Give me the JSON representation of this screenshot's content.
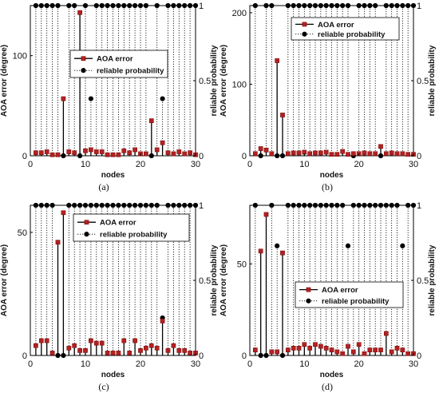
{
  "chart_data": [
    {
      "type": "line",
      "caption": "(a)",
      "xlabel": "nodes",
      "ylabel_left": "AOA error (degree)",
      "ylabel_right": "reliable probability",
      "xlim": [
        0,
        30
      ],
      "xticks": [
        0,
        10,
        20,
        30
      ],
      "ylim_left": [
        0,
        150
      ],
      "yticks_left": [
        0,
        100
      ],
      "ylim_right": [
        0,
        1
      ],
      "yticks_right": [
        0,
        0.5,
        1
      ],
      "legend_position": "upper-middle",
      "series": [
        {
          "name": "AOA error",
          "color": "#b22222",
          "x": [
            1,
            2,
            3,
            4,
            5,
            6,
            7,
            8,
            9,
            10,
            11,
            12,
            13,
            14,
            15,
            16,
            17,
            18,
            19,
            20,
            21,
            22,
            23,
            24,
            25,
            26,
            27,
            28,
            29,
            30
          ],
          "values": [
            3,
            3,
            4,
            1,
            1,
            57,
            4,
            3,
            143,
            5,
            6,
            4,
            4,
            1,
            1,
            1,
            5,
            3,
            6,
            2,
            2,
            35,
            6,
            13,
            3,
            2,
            4,
            2,
            3,
            1
          ]
        },
        {
          "name": "reliable probability",
          "color": "#000000",
          "x": [
            1,
            2,
            3,
            4,
            5,
            6,
            7,
            8,
            9,
            10,
            11,
            12,
            13,
            14,
            15,
            16,
            17,
            18,
            19,
            20,
            21,
            22,
            23,
            24,
            25,
            26,
            27,
            28,
            29,
            30
          ],
          "values": [
            1,
            1,
            1,
            1,
            1,
            0,
            1,
            1,
            0,
            1,
            0.38,
            1,
            1,
            1,
            1,
            1,
            1,
            1,
            1,
            1,
            1,
            0,
            1,
            0.38,
            1,
            1,
            1,
            1,
            1,
            1
          ]
        }
      ]
    },
    {
      "type": "line",
      "caption": "(b)",
      "xlabel": "nodes",
      "ylabel_left": "AOA error (degree)",
      "ylabel_right": "reliable probability",
      "xlim": [
        0,
        30
      ],
      "xticks": [
        0,
        10,
        20,
        30
      ],
      "ylim_left": [
        0,
        210
      ],
      "yticks_left": [
        0,
        100,
        200
      ],
      "ylim_right": [
        0,
        1
      ],
      "yticks_right": [
        0,
        0.5,
        1
      ],
      "legend_position": "upper-right",
      "series": [
        {
          "name": "AOA error",
          "color": "#b22222",
          "x": [
            1,
            2,
            3,
            4,
            5,
            6,
            7,
            8,
            9,
            10,
            11,
            12,
            13,
            14,
            15,
            16,
            17,
            18,
            19,
            20,
            21,
            22,
            23,
            24,
            25,
            26,
            27,
            28,
            29,
            30
          ],
          "values": [
            3,
            10,
            8,
            3,
            133,
            57,
            3,
            4,
            4,
            5,
            3,
            4,
            4,
            5,
            2,
            2,
            6,
            2,
            3,
            3,
            4,
            3,
            3,
            13,
            3,
            4,
            3,
            3,
            2,
            2
          ]
        },
        {
          "name": "reliable probability",
          "color": "#000000",
          "x": [
            1,
            2,
            3,
            4,
            5,
            6,
            7,
            8,
            9,
            10,
            11,
            12,
            13,
            14,
            15,
            16,
            17,
            18,
            19,
            20,
            21,
            22,
            23,
            24,
            25,
            26,
            27,
            28,
            29,
            30
          ],
          "values": [
            1,
            0,
            1,
            1,
            0,
            0,
            1,
            1,
            1,
            1,
            1,
            1,
            1,
            1,
            1,
            1,
            1,
            1,
            0,
            1,
            1,
            1,
            1,
            0,
            1,
            1,
            1,
            1,
            1,
            1
          ]
        }
      ]
    },
    {
      "type": "line",
      "caption": "(c)",
      "xlabel": "nodes",
      "ylabel_left": "AOA error (degree)",
      "ylabel_right": "reliable probability",
      "xlim": [
        0,
        30
      ],
      "xticks": [
        0,
        10,
        20,
        30
      ],
      "ylim_left": [
        0,
        61
      ],
      "yticks_left": [
        0,
        50
      ],
      "ylim_right": [
        0,
        1
      ],
      "yticks_right": [
        0,
        0.5,
        1
      ],
      "legend_position": "upper-middle",
      "series": [
        {
          "name": "AOA error",
          "color": "#b22222",
          "x": [
            1,
            2,
            3,
            4,
            5,
            6,
            7,
            8,
            9,
            10,
            11,
            12,
            13,
            14,
            15,
            16,
            17,
            18,
            19,
            20,
            21,
            22,
            23,
            24,
            25,
            26,
            27,
            28,
            29,
            30
          ],
          "values": [
            4,
            6,
            6,
            1,
            46,
            58,
            3,
            4,
            2,
            2,
            6,
            5,
            5,
            1,
            1,
            1,
            6,
            1,
            6,
            2,
            3,
            4,
            3,
            14,
            2,
            4,
            2,
            2,
            1,
            1
          ]
        },
        {
          "name": "reliable probability",
          "color": "#000000",
          "x": [
            1,
            2,
            3,
            4,
            5,
            6,
            7,
            8,
            9,
            10,
            11,
            12,
            13,
            14,
            15,
            16,
            17,
            18,
            19,
            20,
            21,
            22,
            23,
            24,
            25,
            26,
            27,
            28,
            29,
            30
          ],
          "values": [
            1,
            1,
            1,
            1,
            0,
            0,
            1,
            1,
            1,
            1,
            1,
            1,
            1,
            1,
            1,
            1,
            1,
            1,
            1,
            1,
            1,
            1,
            1,
            0.25,
            1,
            1,
            1,
            1,
            1,
            1
          ]
        }
      ]
    },
    {
      "type": "line",
      "caption": "(d)",
      "xlabel": "nodes",
      "ylabel_left": "AOA error (degree)",
      "ylabel_right": "reliable probability",
      "xlim": [
        0,
        30
      ],
      "xticks": [
        0,
        10,
        20,
        30
      ],
      "ylim_left": [
        0,
        82
      ],
      "yticks_left": [
        0,
        50
      ],
      "ylim_right": [
        0,
        1
      ],
      "yticks_right": [
        0,
        0.5,
        1
      ],
      "legend_position": "lower-middle",
      "series": [
        {
          "name": "AOA error",
          "color": "#b22222",
          "x": [
            1,
            2,
            3,
            4,
            5,
            6,
            7,
            8,
            9,
            10,
            11,
            12,
            13,
            14,
            15,
            16,
            17,
            18,
            19,
            20,
            21,
            22,
            23,
            24,
            25,
            26,
            27,
            28,
            29,
            30
          ],
          "values": [
            3,
            57,
            77,
            2,
            2,
            56,
            3,
            4,
            4,
            6,
            4,
            6,
            5,
            4,
            3,
            2,
            1,
            5,
            2,
            6,
            1,
            3,
            3,
            3,
            12,
            2,
            4,
            3,
            1,
            1
          ]
        },
        {
          "name": "reliable probability",
          "color": "#000000",
          "x": [
            1,
            2,
            3,
            4,
            5,
            6,
            7,
            8,
            9,
            10,
            11,
            12,
            13,
            14,
            15,
            16,
            17,
            18,
            19,
            20,
            21,
            22,
            23,
            24,
            25,
            26,
            27,
            28,
            29,
            30
          ],
          "values": [
            1,
            0,
            0,
            1,
            0.73,
            0,
            1,
            1,
            1,
            1,
            1,
            1,
            1,
            1,
            1,
            1,
            1,
            0.73,
            1,
            1,
            1,
            1,
            1,
            1,
            1,
            1,
            1,
            0.73,
            1,
            1
          ]
        }
      ]
    }
  ]
}
